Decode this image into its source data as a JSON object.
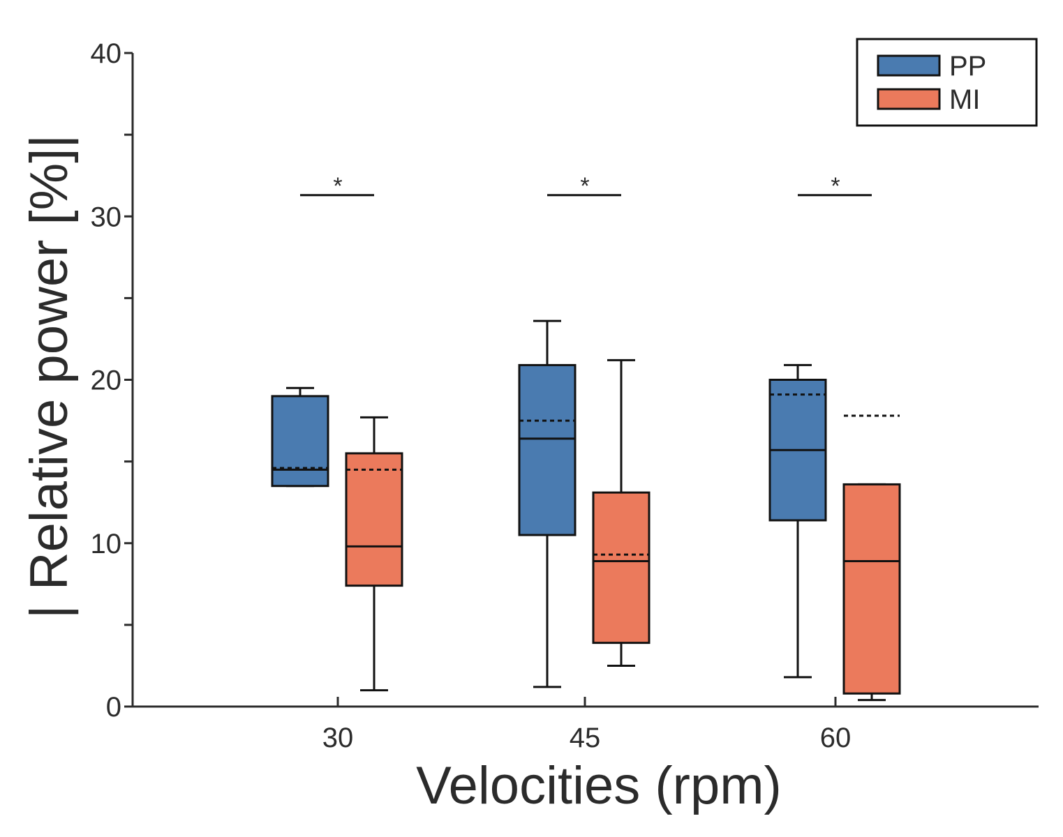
{
  "chart_data": {
    "type": "box",
    "title": "",
    "xlabel": "Velocities (rpm)",
    "ylabel": "| Relative power [%]|",
    "ylim": [
      0,
      40
    ],
    "yticks": [
      0,
      10,
      20,
      30,
      40
    ],
    "categories": [
      "30",
      "45",
      "60"
    ],
    "legend": {
      "placement": "top-right",
      "entries": [
        "PP",
        "MI"
      ]
    },
    "series": [
      {
        "name": "PP",
        "color": "#4a7bb0",
        "boxes": [
          {
            "category": "30",
            "whisker_low": 13.5,
            "q1": 13.5,
            "median": 14.5,
            "q3": 19.0,
            "whisker_high": 19.5,
            "mean": 14.6
          },
          {
            "category": "45",
            "whisker_low": 1.2,
            "q1": 10.5,
            "median": 16.4,
            "q3": 20.9,
            "whisker_high": 23.6,
            "mean": 17.5
          },
          {
            "category": "60",
            "whisker_low": 1.8,
            "q1": 11.4,
            "median": 15.7,
            "q3": 20.0,
            "whisker_high": 20.9,
            "mean": 19.1
          }
        ]
      },
      {
        "name": "MI",
        "color": "#eb7a5c",
        "boxes": [
          {
            "category": "30",
            "whisker_low": 1.0,
            "q1": 7.4,
            "median": 9.8,
            "q3": 15.5,
            "whisker_high": 17.7,
            "mean": 14.5
          },
          {
            "category": "45",
            "whisker_low": 2.5,
            "q1": 3.9,
            "median": 8.9,
            "q3": 13.1,
            "whisker_high": 21.2,
            "mean": 9.3
          },
          {
            "category": "60",
            "whisker_low": 0.4,
            "q1": 0.8,
            "median": 8.9,
            "q3": 13.6,
            "whisker_high": 13.6,
            "mean": 17.8
          }
        ]
      }
    ],
    "significance": [
      {
        "category": "30",
        "label": "*",
        "y": 31.3
      },
      {
        "category": "45",
        "label": "*",
        "y": 31.3
      },
      {
        "category": "60",
        "label": "*",
        "y": 31.3
      }
    ]
  }
}
